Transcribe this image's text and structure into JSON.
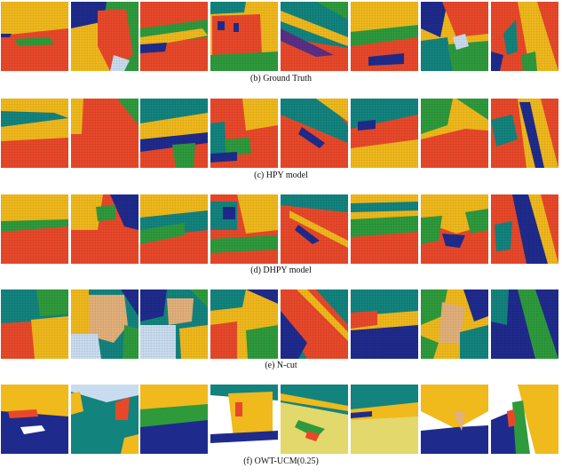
{
  "figure": {
    "palette": {
      "red": "#e8482a",
      "yellow": "#f0b91c",
      "green": "#2e9a3c",
      "navy": "#1f2b8c",
      "teal": "#13837d",
      "tan": "#e2b07a",
      "lightblue": "#c9dcef",
      "khaki": "#e2d86c",
      "white": "#ffffff",
      "pink": "#e8a6c8",
      "purple": "#5b2f86"
    },
    "rows": [
      {
        "id": "ground-truth",
        "caption": "(b) Ground Truth"
      },
      {
        "id": "hpy",
        "caption": "(c) HPY model"
      },
      {
        "id": "dhpy",
        "caption": "(d) DHPY model"
      },
      {
        "id": "ncut",
        "caption": "(e) N-cut"
      },
      {
        "id": "owt-ucm",
        "caption": "(f) OWT-UCM(0.25)"
      }
    ]
  }
}
